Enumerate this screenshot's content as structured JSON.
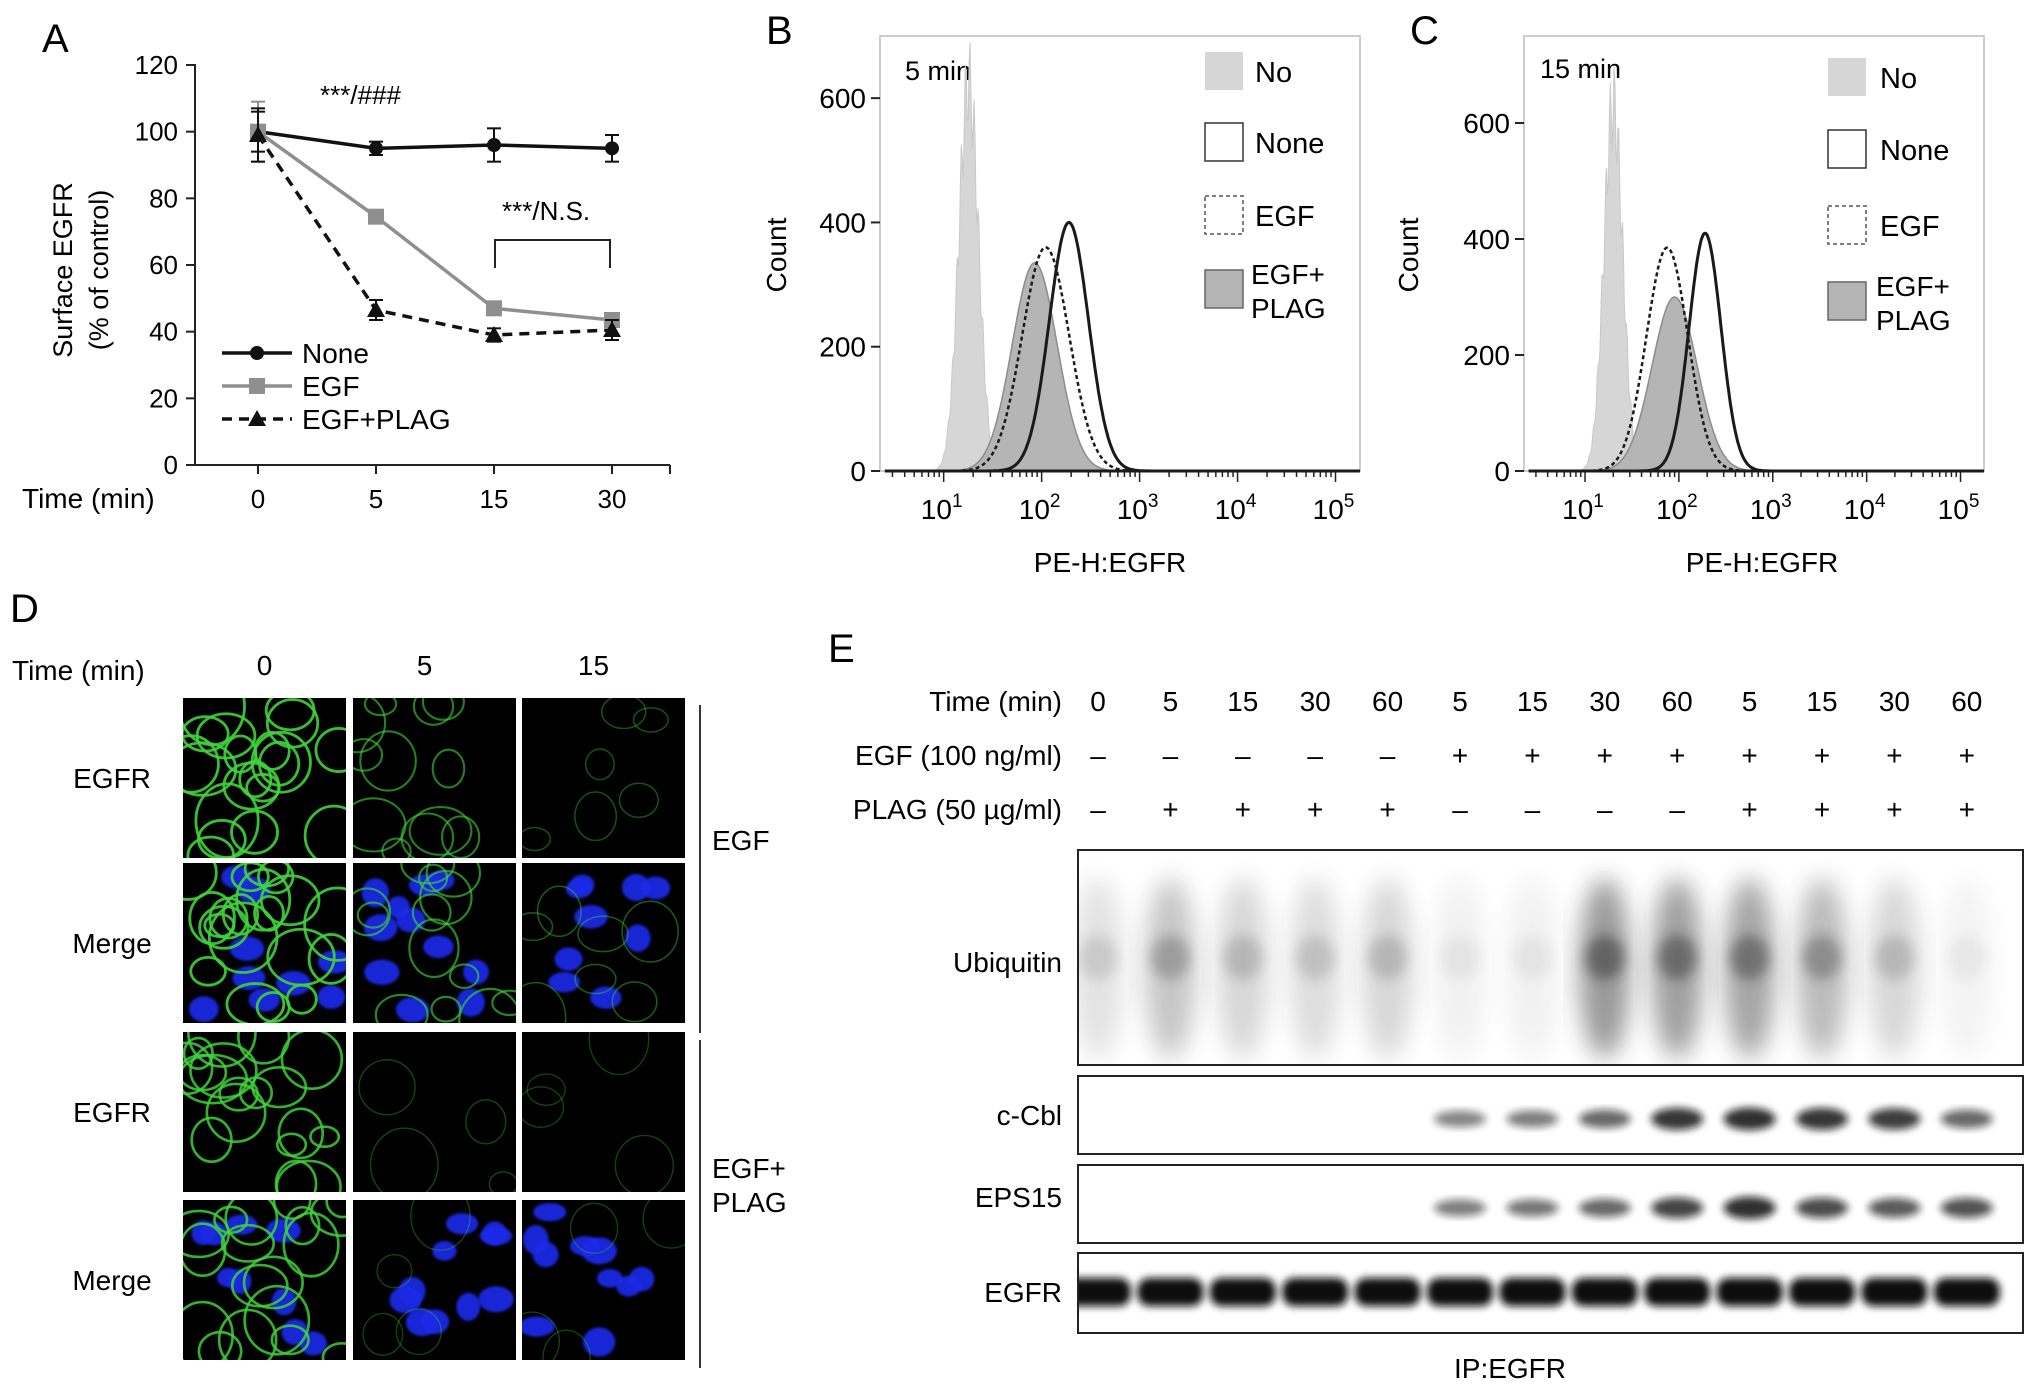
{
  "panels": {
    "A": {
      "letter": "A",
      "ylabel_line1": "Surface EGFR",
      "ylabel_line2": "(% of control)",
      "xlabel": "Time (min)",
      "sig1": "***/###",
      "sig2": "***/N.S."
    },
    "B": {
      "letter": "B",
      "timepoint": "5 min",
      "ylabel": "Count",
      "xlabel": "PE-H:EGFR",
      "legend": [
        {
          "label": "No"
        },
        {
          "label": "None"
        },
        {
          "label": "EGF"
        },
        {
          "label_line1": "EGF+",
          "label_line2": "PLAG"
        }
      ]
    },
    "C": {
      "letter": "C",
      "timepoint": "15 min",
      "ylabel": "Count",
      "xlabel": "PE-H:EGFR",
      "legend": [
        {
          "label": "No"
        },
        {
          "label": "None"
        },
        {
          "label": "EGF"
        },
        {
          "label_line1": "EGF+",
          "label_line2": "PLAG"
        }
      ]
    },
    "D": {
      "letter": "D",
      "time_label": "Time (min)",
      "columns": [
        "0",
        "5",
        "15"
      ],
      "rows": [
        "EGFR",
        "Merge",
        "EGFR",
        "Merge"
      ],
      "groups": [
        {
          "label_line1": "EGF",
          "label_line2": ""
        },
        {
          "label_line1": "EGF+",
          "label_line2": "PLAG"
        }
      ]
    },
    "E": {
      "letter": "E",
      "row_labels": [
        "Time (min)",
        "EGF (100 ng/ml)",
        "PLAG (50 µg/ml)"
      ],
      "times": [
        "0",
        "5",
        "15",
        "30",
        "60",
        "5",
        "15",
        "30",
        "60",
        "5",
        "15",
        "30",
        "60"
      ],
      "egf": [
        "–",
        "–",
        "–",
        "–",
        "–",
        "+",
        "+",
        "+",
        "+",
        "+",
        "+",
        "+",
        "+"
      ],
      "plag": [
        "–",
        "+",
        "+",
        "+",
        "+",
        "–",
        "–",
        "–",
        "–",
        "+",
        "+",
        "+",
        "+"
      ],
      "blots": [
        "Ubiquitin",
        "c-Cbl",
        "EPS15",
        "EGFR"
      ],
      "ubiquitin_intensity": [
        0.25,
        0.5,
        0.35,
        0.3,
        0.35,
        0.12,
        0.12,
        0.9,
        0.85,
        0.8,
        0.6,
        0.35,
        0.1
      ],
      "ccbl_intensity": [
        0,
        0,
        0,
        0,
        0,
        0.25,
        0.3,
        0.45,
        0.8,
        0.85,
        0.8,
        0.75,
        0.45
      ],
      "eps15_intensity": [
        0,
        0,
        0,
        0,
        0,
        0.3,
        0.35,
        0.45,
        0.7,
        0.85,
        0.65,
        0.55,
        0.6
      ],
      "egfr_intensity": [
        1,
        1,
        1,
        1,
        1,
        1,
        1,
        1,
        1,
        1,
        1,
        1,
        1
      ],
      "footer": "IP:EGFR"
    }
  },
  "chart_data": [
    {
      "type": "line",
      "panel": "A",
      "x": [
        0,
        5,
        15,
        30
      ],
      "categories": [
        "0",
        "5",
        "15",
        "30"
      ],
      "ylim": [
        0,
        120
      ],
      "yticks": [
        0,
        20,
        40,
        60,
        80,
        100,
        120
      ],
      "series": [
        {
          "name": "None",
          "values": [
            100,
            95,
            96,
            95
          ],
          "errors": [
            6,
            2,
            5,
            4
          ],
          "color": "#111111",
          "marker": "circle",
          "dash": "solid"
        },
        {
          "name": "EGF",
          "values": [
            100,
            74.5,
            47,
            43.5
          ],
          "errors": [
            9,
            2,
            2,
            2
          ],
          "color": "#8f8f8f",
          "marker": "square",
          "dash": "solid"
        },
        {
          "name": "EGF+PLAG",
          "values": [
            99,
            46.5,
            39,
            40.5
          ],
          "errors": [
            8,
            3,
            2,
            3
          ],
          "color": "#111111",
          "marker": "triangle",
          "dash": "dashed"
        }
      ]
    },
    {
      "type": "area",
      "panel": "B",
      "xscale": "log",
      "xlim": [
        10,
        100000
      ],
      "ylim": [
        0,
        700
      ],
      "yticks": [
        0,
        200,
        400,
        600
      ],
      "xticks": [
        "10^1",
        "10^2",
        "10^3",
        "10^4",
        "10^5"
      ],
      "series": [
        {
          "name": "No",
          "peak_x": 18,
          "peak_y": 625,
          "width": 0.1
        },
        {
          "name": "None",
          "peak_x": 190,
          "peak_y": 400,
          "width": 0.2
        },
        {
          "name": "EGF",
          "peak_x": 110,
          "peak_y": 360,
          "width": 0.24
        },
        {
          "name": "EGF+PLAG",
          "peak_x": 85,
          "peak_y": 335,
          "width": 0.23
        }
      ]
    },
    {
      "type": "area",
      "panel": "C",
      "xscale": "log",
      "xlim": [
        10,
        100000
      ],
      "ylim": [
        0,
        750
      ],
      "yticks": [
        0,
        200,
        400,
        600
      ],
      "xticks": [
        "10^1",
        "10^2",
        "10^3",
        "10^4",
        "10^5"
      ],
      "series": [
        {
          "name": "No",
          "peak_x": 20,
          "peak_y": 630,
          "width": 0.1
        },
        {
          "name": "None",
          "peak_x": 190,
          "peak_y": 410,
          "width": 0.17
        },
        {
          "name": "EGF",
          "peak_x": 75,
          "peak_y": 385,
          "width": 0.22
        },
        {
          "name": "EGF+PLAG",
          "peak_x": 90,
          "peak_y": 300,
          "width": 0.24
        }
      ]
    }
  ]
}
